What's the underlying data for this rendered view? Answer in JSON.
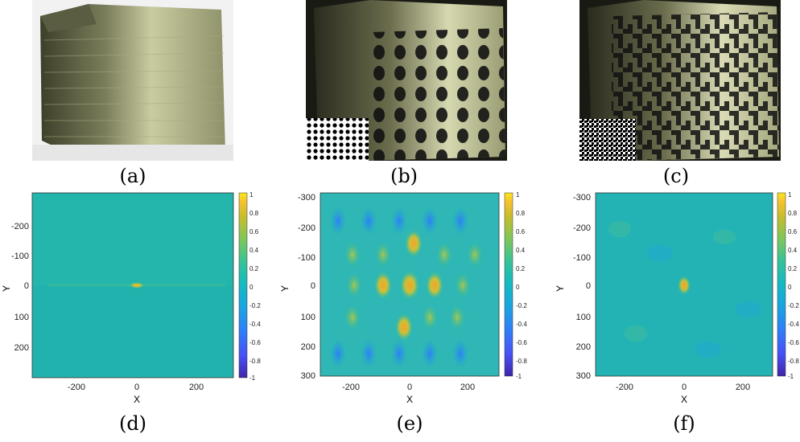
{
  "captions": [
    "(a)",
    "(b)",
    "(c)",
    "(d)",
    "(e)",
    "(f)"
  ],
  "plots": [
    {
      "panel": "d",
      "xlabel": "X",
      "ylabel": "Y",
      "xticks": [
        "-200",
        "0",
        "200"
      ],
      "yticks": [
        "-200",
        "-100",
        "0",
        "100",
        "200"
      ],
      "peak": "single small peak at origin",
      "colorbar_ticks": [
        "1",
        "0.8",
        "0.6",
        "0.4",
        "0.2",
        "0",
        "-0.2",
        "-0.4",
        "-0.6",
        "-0.8",
        "-1"
      ]
    },
    {
      "panel": "e",
      "xlabel": "X",
      "ylabel": "Y",
      "xticks": [
        "-200",
        "0",
        "200"
      ],
      "yticks": [
        "-300",
        "-200",
        "-100",
        "0",
        "100",
        "200",
        "300"
      ],
      "peak": "periodic lattice of peaks",
      "colorbar_ticks": [
        "1",
        "0.8",
        "0.6",
        "0.4",
        "0.2",
        "0",
        "-0.2",
        "-0.4",
        "-0.6",
        "-0.8",
        "-1"
      ]
    },
    {
      "panel": "f",
      "xlabel": "X",
      "ylabel": "Y",
      "xticks": [
        "-200",
        "0",
        "200"
      ],
      "yticks": [
        "-300",
        "-200",
        "-100",
        "0",
        "100",
        "200",
        "300"
      ],
      "peak": "single peak at origin",
      "colorbar_ticks": [
        "1",
        "0.8",
        "0.6",
        "0.4",
        "0.2",
        "0",
        "-0.2",
        "-0.4",
        "-0.6",
        "-0.8",
        "-1"
      ]
    }
  ],
  "colors": {
    "bg_map": "#22b4b0",
    "peak": "#f6d12a",
    "low": "#2c6ee6",
    "colormap": [
      "#3e26a8",
      "#4850f6",
      "#2f7ef8",
      "#1aa4e0",
      "#14b9c4",
      "#33c29b",
      "#7fc65a",
      "#c7bd2c",
      "#f5c12f",
      "#fae51e"
    ]
  }
}
